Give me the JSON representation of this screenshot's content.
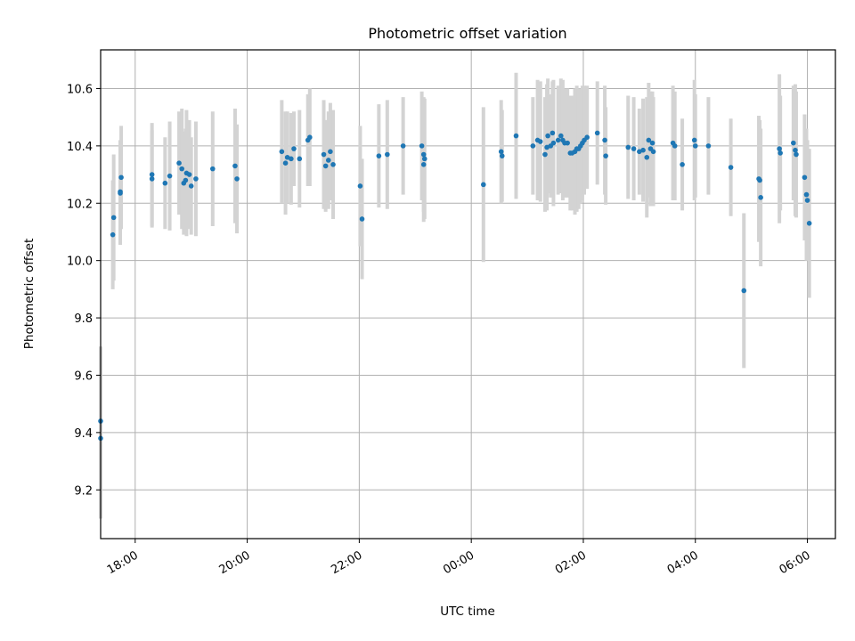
{
  "chart_data": {
    "type": "scatter",
    "title": "Photometric offset variation",
    "xlabel": "UTC time",
    "ylabel": "Photometric offset",
    "grid": true,
    "legend": "none",
    "x_range": [
      "17:23",
      "06:30"
    ],
    "ylim": [
      9.03,
      10.735
    ],
    "x_ticks": [
      "18:00",
      "20:00",
      "22:00",
      "00:00",
      "02:00",
      "04:00",
      "06:00"
    ],
    "y_ticks": [
      "9.2",
      "9.4",
      "9.6",
      "9.8",
      "10.0",
      "10.2",
      "10.4",
      "10.6"
    ],
    "colors": {
      "points": "#1f77b4",
      "errorbars": "#d3d3d3",
      "grid": "#b0b0b0"
    },
    "points": [
      {
        "t": "17:23",
        "y": 9.44,
        "err": 0.26
      },
      {
        "t": "17:23",
        "y": 9.38,
        "err": 0.28
      },
      {
        "t": "17:36",
        "y": 10.09,
        "err": 0.19
      },
      {
        "t": "17:37",
        "y": 10.15,
        "err": 0.22
      },
      {
        "t": "17:44",
        "y": 10.24,
        "err": 0.18
      },
      {
        "t": "17:44",
        "y": 10.235,
        "err": 0.18
      },
      {
        "t": "17:45",
        "y": 10.29,
        "err": 0.18
      },
      {
        "t": "18:18",
        "y": 10.3,
        "err": 0.18
      },
      {
        "t": "18:18",
        "y": 10.285,
        "err": 0.17
      },
      {
        "t": "18:32",
        "y": 10.27,
        "err": 0.16
      },
      {
        "t": "18:37",
        "y": 10.295,
        "err": 0.19
      },
      {
        "t": "18:47",
        "y": 10.34,
        "err": 0.18
      },
      {
        "t": "18:50",
        "y": 10.32,
        "err": 0.21
      },
      {
        "t": "18:52",
        "y": 10.27,
        "err": 0.18
      },
      {
        "t": "18:54",
        "y": 10.28,
        "err": 0.18
      },
      {
        "t": "18:55",
        "y": 10.305,
        "err": 0.22
      },
      {
        "t": "18:58",
        "y": 10.3,
        "err": 0.19
      },
      {
        "t": "19:00",
        "y": 10.26,
        "err": 0.17
      },
      {
        "t": "19:05",
        "y": 10.285,
        "err": 0.2
      },
      {
        "t": "19:23",
        "y": 10.32,
        "err": 0.2
      },
      {
        "t": "19:47",
        "y": 10.33,
        "err": 0.2
      },
      {
        "t": "19:49",
        "y": 10.285,
        "err": 0.19
      },
      {
        "t": "20:37",
        "y": 10.38,
        "err": 0.18
      },
      {
        "t": "20:41",
        "y": 10.34,
        "err": 0.18
      },
      {
        "t": "20:43",
        "y": 10.36,
        "err": 0.16
      },
      {
        "t": "20:47",
        "y": 10.355,
        "err": 0.16
      },
      {
        "t": "20:50",
        "y": 10.39,
        "err": 0.13
      },
      {
        "t": "20:56",
        "y": 10.355,
        "err": 0.17
      },
      {
        "t": "21:05",
        "y": 10.42,
        "err": 0.16
      },
      {
        "t": "21:07",
        "y": 10.43,
        "err": 0.17
      },
      {
        "t": "21:22",
        "y": 10.37,
        "err": 0.19
      },
      {
        "t": "21:24",
        "y": 10.33,
        "err": 0.16
      },
      {
        "t": "21:27",
        "y": 10.35,
        "err": 0.17
      },
      {
        "t": "21:29",
        "y": 10.38,
        "err": 0.17
      },
      {
        "t": "21:32",
        "y": 10.335,
        "err": 0.19
      },
      {
        "t": "22:01",
        "y": 10.26,
        "err": 0.21
      },
      {
        "t": "22:03",
        "y": 10.145,
        "err": 0.21
      },
      {
        "t": "22:21",
        "y": 10.365,
        "err": 0.18
      },
      {
        "t": "22:30",
        "y": 10.37,
        "err": 0.19
      },
      {
        "t": "22:47",
        "y": 10.4,
        "err": 0.17
      },
      {
        "t": "23:07",
        "y": 10.4,
        "err": 0.19
      },
      {
        "t": "23:09",
        "y": 10.37,
        "err": 0.2
      },
      {
        "t": "23:09",
        "y": 10.335,
        "err": 0.2
      },
      {
        "t": "23:10",
        "y": 10.355,
        "err": 0.21
      },
      {
        "t": "00:13",
        "y": 10.265,
        "err": 0.27
      },
      {
        "t": "00:32",
        "y": 10.38,
        "err": 0.18
      },
      {
        "t": "00:33",
        "y": 10.365,
        "err": 0.16
      },
      {
        "t": "00:48",
        "y": 10.435,
        "err": 0.22
      },
      {
        "t": "01:06",
        "y": 10.4,
        "err": 0.17
      },
      {
        "t": "01:11",
        "y": 10.42,
        "err": 0.21
      },
      {
        "t": "01:14",
        "y": 10.415,
        "err": 0.21
      },
      {
        "t": "01:19",
        "y": 10.37,
        "err": 0.2
      },
      {
        "t": "01:21",
        "y": 10.395,
        "err": 0.22
      },
      {
        "t": "01:22",
        "y": 10.435,
        "err": 0.2
      },
      {
        "t": "01:25",
        "y": 10.4,
        "err": 0.18
      },
      {
        "t": "01:27",
        "y": 10.445,
        "err": 0.18
      },
      {
        "t": "01:28",
        "y": 10.41,
        "err": 0.22
      },
      {
        "t": "01:33",
        "y": 10.42,
        "err": 0.19
      },
      {
        "t": "01:36",
        "y": 10.435,
        "err": 0.2
      },
      {
        "t": "01:38",
        "y": 10.42,
        "err": 0.21
      },
      {
        "t": "01:40",
        "y": 10.41,
        "err": 0.19
      },
      {
        "t": "01:43",
        "y": 10.41,
        "err": 0.19
      },
      {
        "t": "01:46",
        "y": 10.375,
        "err": 0.2
      },
      {
        "t": "01:48",
        "y": 10.375,
        "err": 0.2
      },
      {
        "t": "01:51",
        "y": 10.38,
        "err": 0.22
      },
      {
        "t": "01:53",
        "y": 10.39,
        "err": 0.22
      },
      {
        "t": "01:55",
        "y": 10.39,
        "err": 0.21
      },
      {
        "t": "01:57",
        "y": 10.4,
        "err": 0.2
      },
      {
        "t": "01:59",
        "y": 10.41,
        "err": 0.2
      },
      {
        "t": "02:01",
        "y": 10.42,
        "err": 0.19
      },
      {
        "t": "02:04",
        "y": 10.43,
        "err": 0.18
      },
      {
        "t": "02:15",
        "y": 10.445,
        "err": 0.18
      },
      {
        "t": "02:23",
        "y": 10.42,
        "err": 0.19
      },
      {
        "t": "02:24",
        "y": 10.365,
        "err": 0.17
      },
      {
        "t": "02:48",
        "y": 10.395,
        "err": 0.18
      },
      {
        "t": "02:54",
        "y": 10.39,
        "err": 0.18
      },
      {
        "t": "03:00",
        "y": 10.38,
        "err": 0.15
      },
      {
        "t": "03:04",
        "y": 10.385,
        "err": 0.18
      },
      {
        "t": "03:08",
        "y": 10.36,
        "err": 0.21
      },
      {
        "t": "03:10",
        "y": 10.42,
        "err": 0.2
      },
      {
        "t": "03:12",
        "y": 10.39,
        "err": 0.2
      },
      {
        "t": "03:14",
        "y": 10.41,
        "err": 0.18
      },
      {
        "t": "03:15",
        "y": 10.38,
        "err": 0.19
      },
      {
        "t": "03:36",
        "y": 10.41,
        "err": 0.2
      },
      {
        "t": "03:38",
        "y": 10.4,
        "err": 0.19
      },
      {
        "t": "03:46",
        "y": 10.335,
        "err": 0.16
      },
      {
        "t": "03:59",
        "y": 10.42,
        "err": 0.21
      },
      {
        "t": "04:00",
        "y": 10.4,
        "err": 0.18
      },
      {
        "t": "04:14",
        "y": 10.4,
        "err": 0.17
      },
      {
        "t": "04:38",
        "y": 10.325,
        "err": 0.17
      },
      {
        "t": "04:52",
        "y": 9.895,
        "err": 0.27
      },
      {
        "t": "05:08",
        "y": 10.285,
        "err": 0.22
      },
      {
        "t": "05:09",
        "y": 10.28,
        "err": 0.21
      },
      {
        "t": "05:10",
        "y": 10.22,
        "err": 0.24
      },
      {
        "t": "05:30",
        "y": 10.39,
        "err": 0.26
      },
      {
        "t": "05:31",
        "y": 10.375,
        "err": 0.2
      },
      {
        "t": "05:45",
        "y": 10.41,
        "err": 0.2
      },
      {
        "t": "05:47",
        "y": 10.385,
        "err": 0.23
      },
      {
        "t": "05:48",
        "y": 10.37,
        "err": 0.22
      },
      {
        "t": "05:57",
        "y": 10.29,
        "err": 0.22
      },
      {
        "t": "05:59",
        "y": 10.23,
        "err": 0.23
      },
      {
        "t": "06:00",
        "y": 10.21,
        "err": 0.21
      },
      {
        "t": "06:02",
        "y": 10.13,
        "err": 0.26
      }
    ]
  }
}
